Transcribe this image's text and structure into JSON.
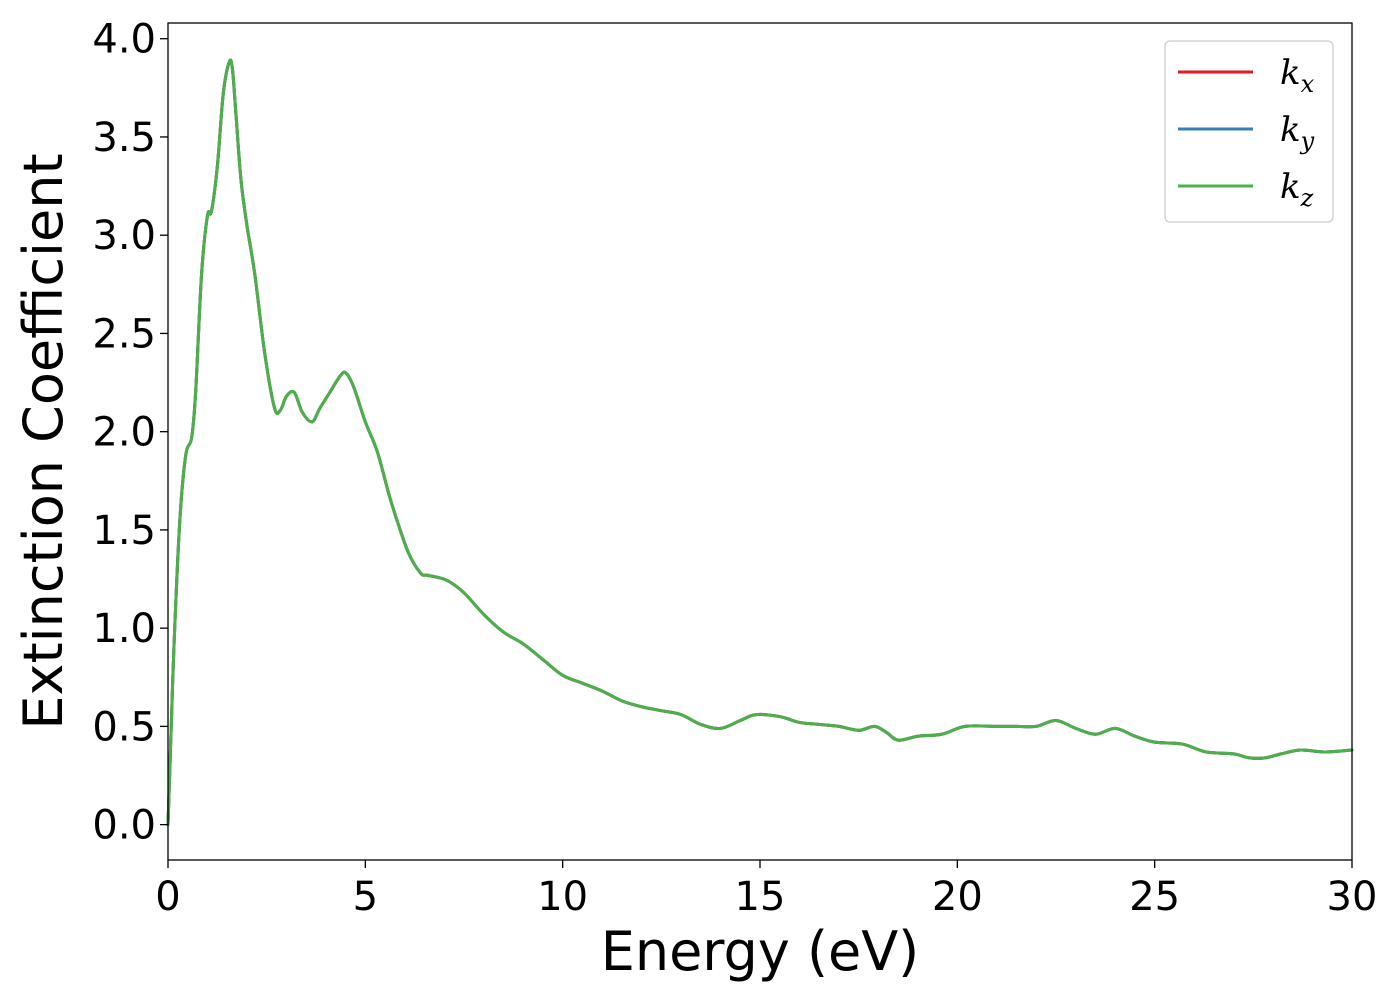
{
  "chart_data": {
    "type": "line",
    "xlabel": "Energy (eV)",
    "ylabel": "Extinction Coefficient",
    "xlim": [
      0,
      30
    ],
    "ylim": [
      -0.18,
      4.08
    ],
    "xticks": [
      0,
      5,
      10,
      15,
      20,
      25,
      30
    ],
    "xtick_labels": [
      "0",
      "5",
      "10",
      "15",
      "20",
      "25",
      "30"
    ],
    "yticks": [
      0.0,
      0.5,
      1.0,
      1.5,
      2.0,
      2.5,
      3.0,
      3.5,
      4.0
    ],
    "ytick_labels": [
      "0.0",
      "0.5",
      "1.0",
      "1.5",
      "2.0",
      "2.5",
      "3.0",
      "3.5",
      "4.0"
    ],
    "grid": false,
    "legend": {
      "placement": "top-right",
      "entries": [
        {
          "base": "k",
          "sub": "x",
          "color": "#e41a1c"
        },
        {
          "base": "k",
          "sub": "y",
          "color": "#377eb8"
        },
        {
          "base": "k",
          "sub": "z",
          "color": "#4daf4a"
        }
      ]
    },
    "x": [
      0,
      0.05,
      0.15,
      0.3,
      0.45,
      0.6,
      0.7,
      0.85,
      1.0,
      1.1,
      1.25,
      1.4,
      1.55,
      1.63,
      1.72,
      1.85,
      2.0,
      2.2,
      2.45,
      2.7,
      2.85,
      3.0,
      3.2,
      3.4,
      3.65,
      3.85,
      4.1,
      4.35,
      4.5,
      4.7,
      5.0,
      5.3,
      5.6,
      5.8,
      6.1,
      6.4,
      6.55,
      6.8,
      7.1,
      7.5,
      8.0,
      8.5,
      9.0,
      9.5,
      10.0,
      10.5,
      11.0,
      11.5,
      12.0,
      12.5,
      13.0,
      13.5,
      14.0,
      14.5,
      14.9,
      15.5,
      16.0,
      16.5,
      17.0,
      17.5,
      17.9,
      18.2,
      18.5,
      19.0,
      19.6,
      20.2,
      21.0,
      21.5,
      22.0,
      22.5,
      23.0,
      23.5,
      24.0,
      24.5,
      25.0,
      25.7,
      26.3,
      27.0,
      27.4,
      27.8,
      28.2,
      28.7,
      29.3,
      30.0
    ],
    "series": [
      {
        "name": "k_x",
        "color": "#e41a1c",
        "values": [
          0.0,
          0.3,
          0.9,
          1.55,
          1.88,
          1.97,
          2.2,
          2.8,
          3.1,
          3.12,
          3.35,
          3.72,
          3.88,
          3.85,
          3.62,
          3.28,
          3.05,
          2.8,
          2.4,
          2.12,
          2.11,
          2.18,
          2.2,
          2.1,
          2.05,
          2.12,
          2.2,
          2.28,
          2.3,
          2.23,
          2.05,
          1.9,
          1.68,
          1.55,
          1.38,
          1.28,
          1.27,
          1.26,
          1.24,
          1.18,
          1.07,
          0.98,
          0.92,
          0.84,
          0.76,
          0.72,
          0.68,
          0.63,
          0.6,
          0.58,
          0.56,
          0.51,
          0.49,
          0.53,
          0.56,
          0.55,
          0.52,
          0.51,
          0.5,
          0.48,
          0.5,
          0.47,
          0.43,
          0.45,
          0.46,
          0.5,
          0.5,
          0.5,
          0.5,
          0.53,
          0.49,
          0.46,
          0.49,
          0.45,
          0.42,
          0.41,
          0.37,
          0.36,
          0.34,
          0.34,
          0.36,
          0.38,
          0.37,
          0.38
        ]
      },
      {
        "name": "k_y",
        "color": "#377eb8",
        "values": [
          0.0,
          0.3,
          0.9,
          1.55,
          1.88,
          1.97,
          2.2,
          2.8,
          3.1,
          3.12,
          3.35,
          3.72,
          3.88,
          3.85,
          3.62,
          3.28,
          3.05,
          2.8,
          2.4,
          2.12,
          2.11,
          2.18,
          2.2,
          2.1,
          2.05,
          2.12,
          2.2,
          2.28,
          2.3,
          2.23,
          2.05,
          1.9,
          1.68,
          1.55,
          1.38,
          1.28,
          1.27,
          1.26,
          1.24,
          1.18,
          1.07,
          0.98,
          0.92,
          0.84,
          0.76,
          0.72,
          0.68,
          0.63,
          0.6,
          0.58,
          0.56,
          0.51,
          0.49,
          0.53,
          0.56,
          0.55,
          0.52,
          0.51,
          0.5,
          0.48,
          0.5,
          0.47,
          0.43,
          0.45,
          0.46,
          0.5,
          0.5,
          0.5,
          0.5,
          0.53,
          0.49,
          0.46,
          0.49,
          0.45,
          0.42,
          0.41,
          0.37,
          0.36,
          0.34,
          0.34,
          0.36,
          0.38,
          0.37,
          0.38
        ]
      },
      {
        "name": "k_z",
        "color": "#4daf4a",
        "values": [
          0.0,
          0.3,
          0.9,
          1.55,
          1.88,
          1.97,
          2.2,
          2.8,
          3.1,
          3.12,
          3.35,
          3.72,
          3.88,
          3.85,
          3.62,
          3.28,
          3.05,
          2.8,
          2.4,
          2.12,
          2.11,
          2.18,
          2.2,
          2.1,
          2.05,
          2.12,
          2.2,
          2.28,
          2.3,
          2.23,
          2.05,
          1.9,
          1.68,
          1.55,
          1.38,
          1.28,
          1.27,
          1.26,
          1.24,
          1.18,
          1.07,
          0.98,
          0.92,
          0.84,
          0.76,
          0.72,
          0.68,
          0.63,
          0.6,
          0.58,
          0.56,
          0.51,
          0.49,
          0.53,
          0.56,
          0.55,
          0.52,
          0.51,
          0.5,
          0.48,
          0.5,
          0.47,
          0.43,
          0.45,
          0.46,
          0.5,
          0.5,
          0.5,
          0.5,
          0.53,
          0.49,
          0.46,
          0.49,
          0.45,
          0.42,
          0.41,
          0.37,
          0.36,
          0.34,
          0.34,
          0.36,
          0.38,
          0.37,
          0.38
        ]
      }
    ]
  }
}
